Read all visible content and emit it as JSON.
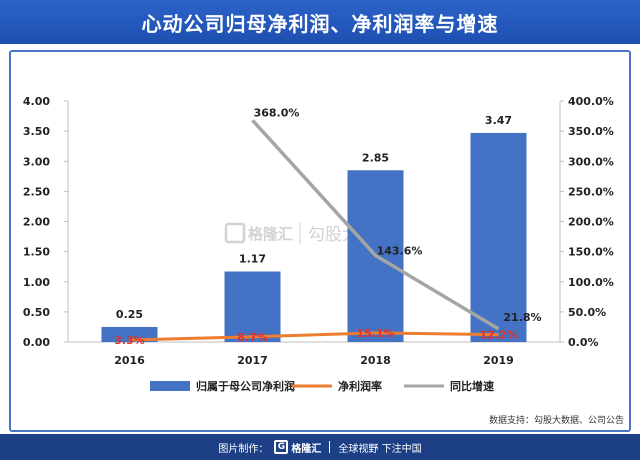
{
  "header": {
    "title": "心动公司归母净利润、净利润率与增速"
  },
  "watermark": {
    "brand": "格隆汇",
    "sub": "勾股大数据"
  },
  "source": "数据支持：勾股大数据、公司公告",
  "footer": {
    "made_by": "图片制作：",
    "brand": "格隆汇",
    "slogan": "全球视野 下注中国"
  },
  "chart_data": {
    "type": "bar",
    "categories": [
      "2016",
      "2017",
      "2018",
      "2019"
    ],
    "series": [
      {
        "name": "归属于母公司净利润",
        "type": "bar",
        "axis": "left",
        "color": "#4472c4",
        "values": [
          0.25,
          1.17,
          2.85,
          3.47
        ],
        "labels": [
          "0.25",
          "1.17",
          "2.85",
          "3.47"
        ]
      },
      {
        "name": "净利润率",
        "type": "line",
        "axis": "right",
        "color": "#ed7d31",
        "values": [
          3.3,
          8.7,
          15.1,
          12.2
        ],
        "labels": [
          "3.3%",
          "8.7%",
          "15.1%",
          "12.2%"
        ]
      },
      {
        "name": "同比增速",
        "type": "line",
        "axis": "right",
        "color": "#a5a5a5",
        "values": [
          null,
          368.0,
          143.6,
          21.8
        ],
        "labels": [
          "",
          "368.0%",
          "143.6%",
          "21.8%"
        ]
      }
    ],
    "yleft": {
      "min": 0,
      "max": 4,
      "ticks": [
        "0.00",
        "0.50",
        "1.00",
        "1.50",
        "2.00",
        "2.50",
        "3.00",
        "3.50",
        "4.00"
      ]
    },
    "yright": {
      "min": 0,
      "max": 400,
      "ticks": [
        "0.0%",
        "50.0%",
        "100.0%",
        "150.0%",
        "200.0%",
        "250.0%",
        "300.0%",
        "350.0%",
        "400.0%"
      ]
    },
    "legend": "bottom",
    "grid": false
  }
}
